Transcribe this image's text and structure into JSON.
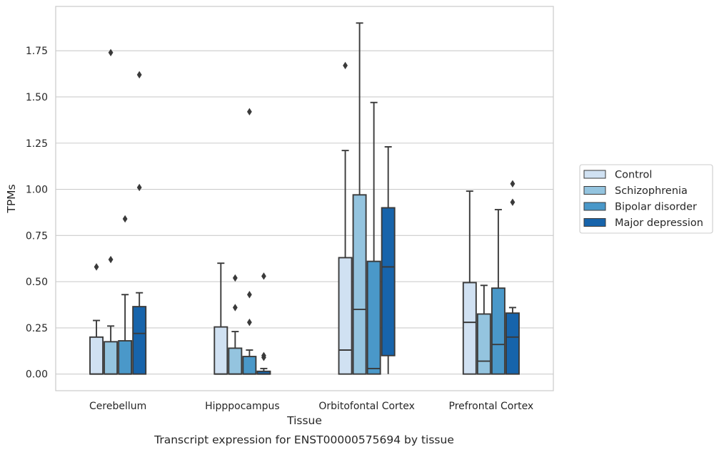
{
  "caption": "Transcript expression for ENST00000575694 by tissue",
  "chart_data": {
    "type": "box",
    "xlabel": "Tissue",
    "ylabel": "TPMs",
    "ylim": [
      -0.09,
      1.99
    ],
    "yticks": [
      "0.00",
      "0.25",
      "0.50",
      "0.75",
      "1.00",
      "1.25",
      "1.50",
      "1.75"
    ],
    "ytick_values": [
      0,
      0.25,
      0.5,
      0.75,
      1.0,
      1.25,
      1.5,
      1.75
    ],
    "grid": "horizontal",
    "legend_position": "right",
    "categories": [
      "Cerebellum",
      "Hipppocampus",
      "Orbitofontal Cortex",
      "Prefrontal Cortex"
    ],
    "series": [
      {
        "name": "Control",
        "color": "#d0e1f2",
        "boxes": [
          {
            "whislo": 0,
            "q1": 0,
            "med": 0.0,
            "q3": 0.2,
            "whishi": 0.29,
            "fliers": [
              0.58
            ]
          },
          {
            "whislo": 0,
            "q1": 0,
            "med": 0.0,
            "q3": 0.255,
            "whishi": 0.6,
            "fliers": []
          },
          {
            "whislo": 0,
            "q1": 0,
            "med": 0.13,
            "q3": 0.63,
            "whishi": 1.21,
            "fliers": [
              1.67
            ]
          },
          {
            "whislo": 0,
            "q1": 0,
            "med": 0.28,
            "q3": 0.495,
            "whishi": 0.99,
            "fliers": []
          }
        ]
      },
      {
        "name": "Schizophrenia",
        "color": "#94c4df",
        "boxes": [
          {
            "whislo": 0,
            "q1": 0,
            "med": 0.0,
            "q3": 0.175,
            "whishi": 0.26,
            "fliers": [
              0.62,
              1.74
            ]
          },
          {
            "whislo": 0,
            "q1": 0,
            "med": 0.0,
            "q3": 0.14,
            "whishi": 0.23,
            "fliers": [
              0.36,
              0.52
            ]
          },
          {
            "whislo": 0,
            "q1": 0,
            "med": 0.35,
            "q3": 0.97,
            "whishi": 1.9,
            "fliers": []
          },
          {
            "whislo": 0,
            "q1": 0,
            "med": 0.07,
            "q3": 0.325,
            "whishi": 0.48,
            "fliers": []
          }
        ]
      },
      {
        "name": "Bipolar disorder",
        "color": "#4a98c9",
        "boxes": [
          {
            "whislo": 0,
            "q1": 0,
            "med": 0.0,
            "q3": 0.18,
            "whishi": 0.43,
            "fliers": [
              0.84
            ]
          },
          {
            "whislo": 0,
            "q1": 0,
            "med": 0.0,
            "q3": 0.095,
            "whishi": 0.13,
            "fliers": [
              0.28,
              0.43,
              1.42
            ]
          },
          {
            "whislo": 0,
            "q1": 0,
            "med": 0.03,
            "q3": 0.61,
            "whishi": 1.47,
            "fliers": []
          },
          {
            "whislo": 0,
            "q1": 0,
            "med": 0.16,
            "q3": 0.465,
            "whishi": 0.89,
            "fliers": []
          }
        ]
      },
      {
        "name": "Major depression",
        "color": "#1764ab",
        "boxes": [
          {
            "whislo": 0,
            "q1": 0,
            "med": 0.22,
            "q3": 0.365,
            "whishi": 0.44,
            "fliers": [
              1.01,
              1.62
            ]
          },
          {
            "whislo": 0,
            "q1": 0,
            "med": 0.0,
            "q3": 0.015,
            "whishi": 0.03,
            "fliers": [
              0.09,
              0.1,
              0.53
            ]
          },
          {
            "whislo": 0,
            "q1": 0.1,
            "med": 0.58,
            "q3": 0.9,
            "whishi": 1.23,
            "fliers": []
          },
          {
            "whislo": 0,
            "q1": 0,
            "med": 0.2,
            "q3": 0.33,
            "whishi": 0.36,
            "fliers": [
              0.93,
              1.03
            ]
          }
        ]
      }
    ]
  }
}
